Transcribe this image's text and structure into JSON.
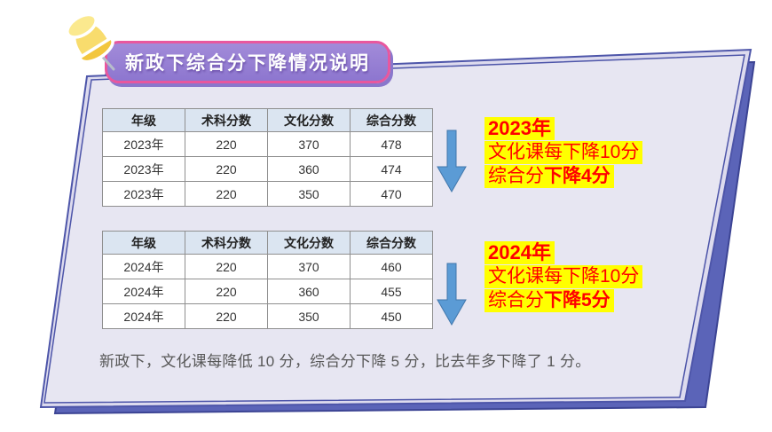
{
  "banner": {
    "title": "新政下综合分下降情况说明"
  },
  "tables": [
    {
      "name": "scores-2023",
      "headers": [
        "年级",
        "术科分数",
        "文化分数",
        "综合分数"
      ],
      "rows": [
        [
          "2023年",
          "220",
          "370",
          "478"
        ],
        [
          "2023年",
          "220",
          "360",
          "474"
        ],
        [
          "2023年",
          "220",
          "350",
          "470"
        ]
      ]
    },
    {
      "name": "scores-2024",
      "headers": [
        "年级",
        "术科分数",
        "文化分数",
        "综合分数"
      ],
      "rows": [
        [
          "2024年",
          "220",
          "370",
          "460"
        ],
        [
          "2024年",
          "220",
          "360",
          "455"
        ],
        [
          "2024年",
          "220",
          "350",
          "450"
        ]
      ]
    }
  ],
  "callouts": [
    {
      "year": "2023年",
      "line2": "文化课每下降10分",
      "line3_prefix": "综合分",
      "line3_bold": "下降4分"
    },
    {
      "year": "2024年",
      "line2": "文化课每下降10分",
      "line3_prefix": "综合分",
      "line3_bold": "下降5分"
    }
  ],
  "footer": {
    "text": "新政下，文化课每降低 10 分，综合分下降 5 分，比去年多下降了 1 分。"
  },
  "icons": {
    "pushpin": "yellow-pushpin",
    "arrow": "blue-down-block-arrow"
  },
  "colors": {
    "banner_fill": "#a28bd9",
    "banner_fill_dark": "#8d76cf",
    "banner_border": "#e8579e",
    "banner_shadow": "#8a77cc",
    "title_text": "#ffffff",
    "sheet_main_fill": "#e7e6f2",
    "sheet_mid_fill": "#dddbee",
    "sheet_edge": "#4d55a9",
    "sheet_back_fill": "#5b64b8",
    "sheet_back_edge": "#3c4494",
    "table_header_bg": "#dbe5f1",
    "table_border": "#8f8f8f",
    "table_text": "#333333",
    "arrow_fill": "#5b9bd5",
    "arrow_edge": "#4177ac",
    "highlight": "#ffff00",
    "callout_text": "#ff0000",
    "footer_text": "#575757"
  }
}
